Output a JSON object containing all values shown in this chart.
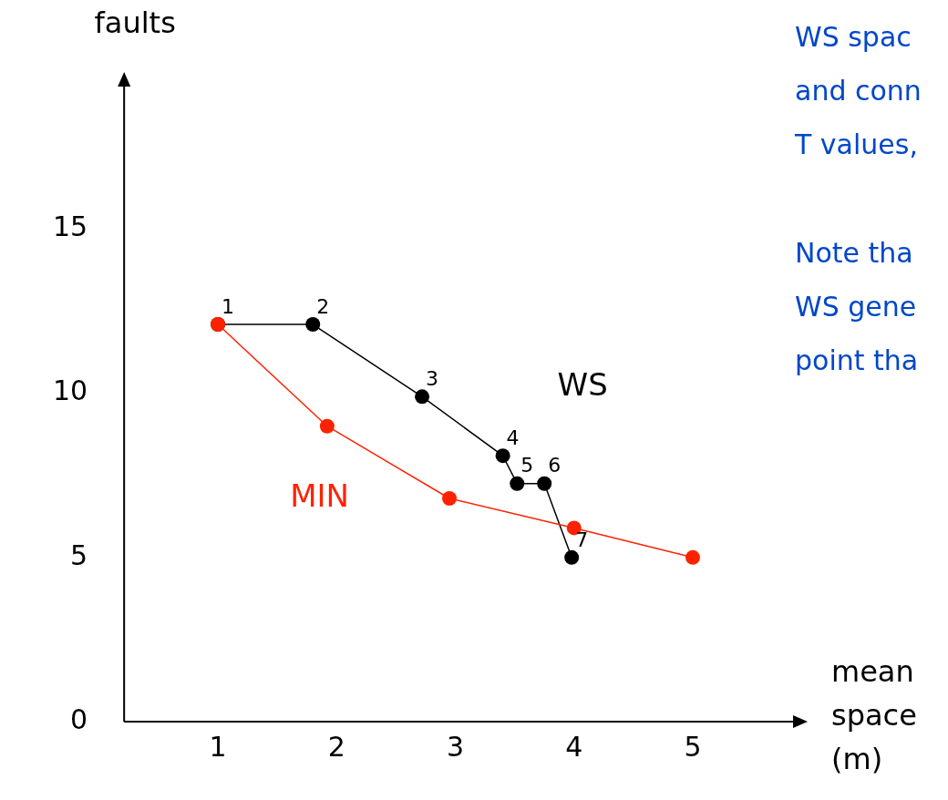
{
  "chart_data": {
    "type": "line",
    "xlabel": "mean space (m)",
    "ylabel": "faults",
    "xlim": [
      0.21,
      5.86
    ],
    "ylim": [
      0,
      19.4
    ],
    "xticks": [
      1,
      2,
      3,
      4,
      5
    ],
    "yticks": [
      0,
      5,
      10,
      15
    ],
    "grid": false,
    "legend": false,
    "marker": "circle",
    "line_style": "solid",
    "series": [
      {
        "name": "MIN",
        "color": "#ff2200",
        "x": [
          1,
          1.92,
          2.95,
          4,
          5
        ],
        "values": [
          12.1,
          9.0,
          6.8,
          5.9,
          5.0
        ]
      },
      {
        "name": "WS",
        "color": "#000000",
        "x": [
          1,
          1.8,
          2.72,
          3.4,
          3.52,
          3.75,
          3.98
        ],
        "values": [
          12.1,
          12.1,
          9.9,
          8.1,
          7.25,
          7.25,
          5.0
        ]
      }
    ],
    "annotations": [
      {
        "text": "1",
        "x": 1,
        "y": 12.1
      },
      {
        "text": "2",
        "x": 1.8,
        "y": 12.1
      },
      {
        "text": "3",
        "x": 2.72,
        "y": 9.9
      },
      {
        "text": "4",
        "x": 3.4,
        "y": 8.1
      },
      {
        "text": "5",
        "x": 3.52,
        "y": 7.25
      },
      {
        "text": "6",
        "x": 3.75,
        "y": 7.25
      },
      {
        "text": "7",
        "x": 3.98,
        "y": 5.0
      },
      "WS spac",
      "and conn",
      "T values,",
      "Note tha",
      "WS gene",
      "point tha"
    ]
  }
}
